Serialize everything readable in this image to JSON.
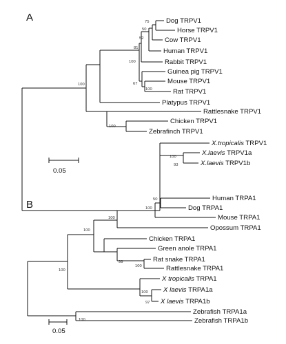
{
  "panels": [
    {
      "label": "A",
      "scale_bar_label": "0.05",
      "leaves": [
        {
          "id": "dog",
          "name": "Dog TRPV1"
        },
        {
          "id": "horse",
          "name": "Horse TRPV1"
        },
        {
          "id": "cow",
          "name": "Cow TRPV1"
        },
        {
          "id": "human",
          "name": "Human TRPV1"
        },
        {
          "id": "rabbit",
          "name": "Rabbit TRPV1"
        },
        {
          "id": "guineapig",
          "name": "Guinea pig TRPV1"
        },
        {
          "id": "mouse",
          "name": "Mouse TRPV1"
        },
        {
          "id": "rat",
          "name": "Rat TRPV1"
        },
        {
          "id": "platypus",
          "name": "Platypus TRPV1"
        },
        {
          "id": "rattlesnake",
          "name": "Rattlesnake TRPV1"
        },
        {
          "id": "chicken",
          "name": "Chicken TRPV1"
        },
        {
          "id": "zebrafinch",
          "name": "Zebrafinch TRPV1"
        },
        {
          "id": "xtrop",
          "name_italic": "X.tropicalis",
          "name_rest": " TRPV1"
        },
        {
          "id": "xlaevis_a",
          "name_italic": "X.laevis",
          "name_rest": " TRPV1a"
        },
        {
          "id": "xlaevis_b",
          "name_italic": "X.laevis",
          "name_rest": " TRPV1b"
        }
      ],
      "bootstrap": [
        {
          "id": "dog_horse",
          "value": "75"
        },
        {
          "id": "dog_horse_cow",
          "value": "50"
        },
        {
          "id": "laurasia",
          "value": "52"
        },
        {
          "id": "laur_rabbit",
          "value": "81"
        },
        {
          "id": "mammal_core",
          "value": "100"
        },
        {
          "id": "mammals",
          "value": "100"
        },
        {
          "id": "rodents",
          "value": "67"
        },
        {
          "id": "mouse_rat",
          "value": "100"
        },
        {
          "id": "birds",
          "value": "100"
        },
        {
          "id": "xen",
          "value": "100"
        },
        {
          "id": "xlaevis",
          "value": "93"
        }
      ]
    },
    {
      "label": "B",
      "scale_bar_label": "0.05",
      "leaves": [
        {
          "id": "human",
          "name": "Human TRPA1"
        },
        {
          "id": "dog",
          "name": "Dog TRPA1"
        },
        {
          "id": "mouse",
          "name": "Mouse TRPA1"
        },
        {
          "id": "opossum",
          "name": "Opossum TRPA1"
        },
        {
          "id": "chicken",
          "name": "Chicken TRPA1"
        },
        {
          "id": "anole",
          "name": "Green anole TRPA1"
        },
        {
          "id": "ratsnake",
          "name": "Rat snake TRPA1"
        },
        {
          "id": "rattlesnake",
          "name": "Rattlesnake TRPA1"
        },
        {
          "id": "xtrop",
          "name_italic": "X tropicalis",
          "name_rest": " TRPA1"
        },
        {
          "id": "xlaevis_a",
          "name_italic": "X laevis",
          "name_rest": " TRPA1a"
        },
        {
          "id": "xlaevis_b",
          "name_italic": "X laevis",
          "name_rest": " TRPA1b"
        },
        {
          "id": "zfish_a",
          "name": "Zebrafish TRPA1a"
        },
        {
          "id": "zfish_b",
          "name": "Zebrafish TRPA1b"
        }
      ],
      "bootstrap": [
        {
          "id": "human_dog",
          "value": "50"
        },
        {
          "id": "eutheria",
          "value": "100"
        },
        {
          "id": "mammals",
          "value": "100"
        },
        {
          "id": "amniotes",
          "value": "100"
        },
        {
          "id": "squamates",
          "value": "99"
        },
        {
          "id": "snakes",
          "value": "100"
        },
        {
          "id": "xen",
          "value": "100"
        },
        {
          "id": "xlaevis",
          "value": "97"
        },
        {
          "id": "tetrapods",
          "value": "100"
        },
        {
          "id": "zfish",
          "value": "100"
        }
      ]
    }
  ]
}
